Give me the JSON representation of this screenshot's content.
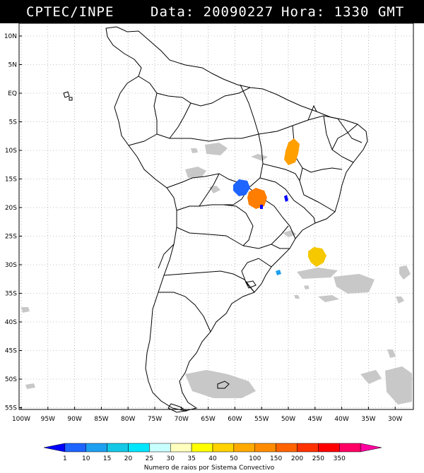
{
  "header": {
    "source": "CPTEC/INPE",
    "date_text": "Data: 20090227",
    "hour_text": "Hora: 1330 GMT"
  },
  "map": {
    "lat_labels": [
      "10N",
      "5N",
      "EQ",
      "5S",
      "10S",
      "15S",
      "20S",
      "25S",
      "30S",
      "35S",
      "40S",
      "45S",
      "50S",
      "55S"
    ],
    "lon_labels": [
      "100W",
      "95W",
      "90W",
      "85W",
      "80W",
      "75W",
      "70W",
      "65W",
      "60W",
      "55W",
      "50W",
      "45W",
      "40W",
      "35W",
      "30W"
    ]
  },
  "legend": {
    "values": [
      "1",
      "10",
      "15",
      "20",
      "25",
      "30",
      "35",
      "40",
      "50",
      "100",
      "150",
      "200",
      "250",
      "350"
    ],
    "colors": [
      "#0000ff",
      "#1e64ff",
      "#1ea0f0",
      "#14c8e6",
      "#00e6ff",
      "#c8ffff",
      "#ffffbe",
      "#ffff00",
      "#ffd200",
      "#ffaa00",
      "#ff8c00",
      "#ff6400",
      "#ff3200",
      "#ff0000",
      "#ff0064",
      "#ff00a0"
    ],
    "caption": "Numero de raios por Sistema Convectivo"
  },
  "systems": [
    {
      "name": "amarelo-sul-atlantico",
      "color": "#f5c800"
    },
    {
      "name": "laranja-tocantins",
      "color": "#ffa000"
    },
    {
      "name": "laranja-mato-grosso-sul",
      "color": "#ff7d00"
    },
    {
      "name": "azul-mato-grosso",
      "color": "#1e64ff"
    }
  ]
}
